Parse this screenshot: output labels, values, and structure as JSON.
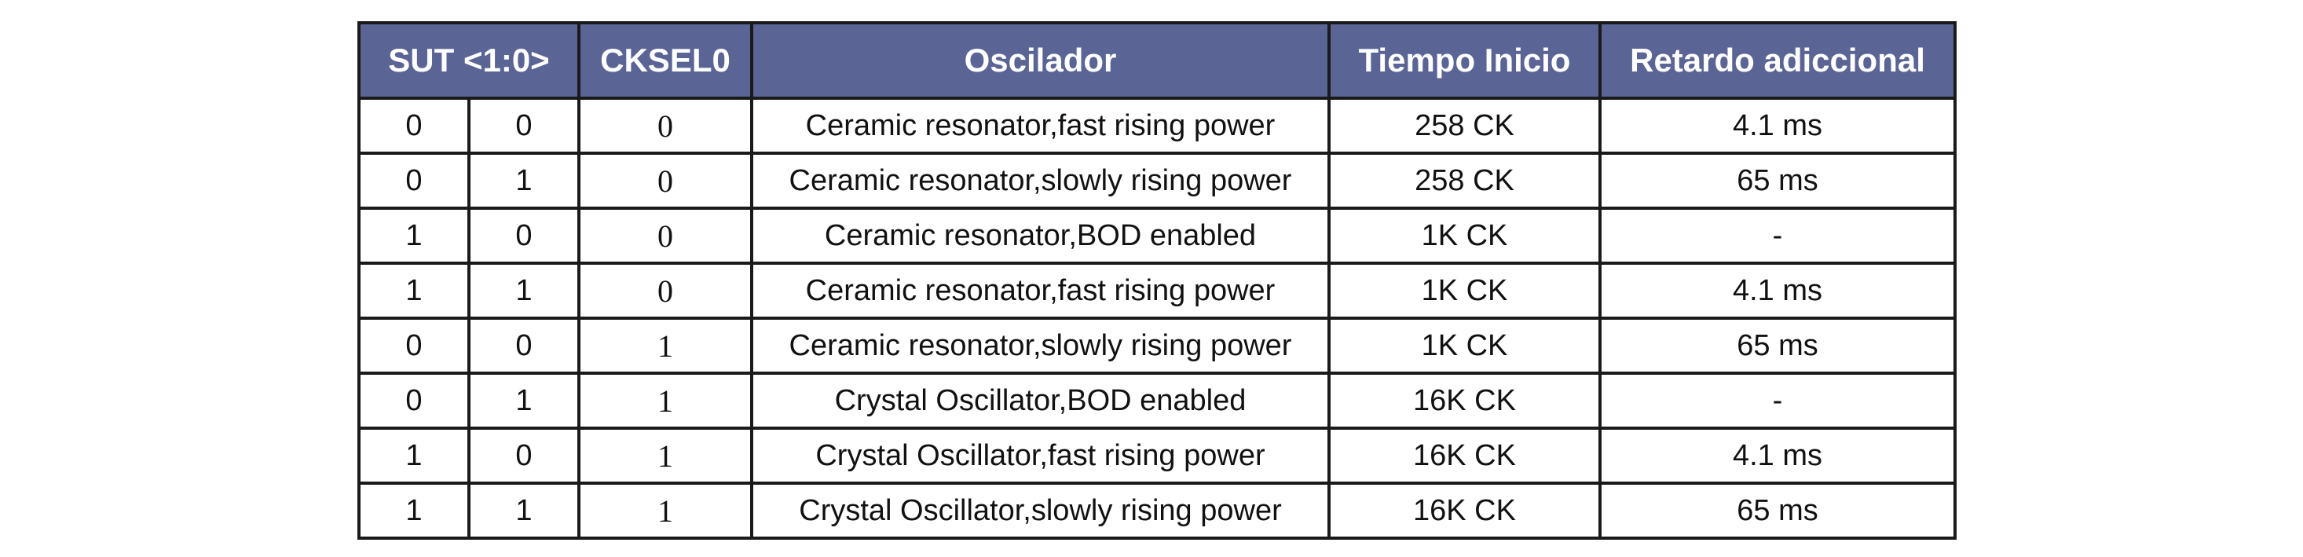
{
  "table": {
    "headers": {
      "sut": "SUT <1:0>",
      "cksel0": "CKSEL0",
      "oscilador": "Oscilador",
      "tiempo": "Tiempo Inicio",
      "retardo": "Retardo adiccional"
    },
    "rows": [
      {
        "sut1": "0",
        "sut0": "0",
        "cksel0": "0",
        "oscilador": "Ceramic resonator,fast rising power",
        "tiempo": "258 CK",
        "retardo": "4.1 ms"
      },
      {
        "sut1": "0",
        "sut0": "1",
        "cksel0": "0",
        "oscilador": "Ceramic resonator,slowly rising power",
        "tiempo": "258 CK",
        "retardo": "65 ms"
      },
      {
        "sut1": "1",
        "sut0": "0",
        "cksel0": "0",
        "oscilador": "Ceramic resonator,BOD enabled",
        "tiempo": "1K CK",
        "retardo": "-"
      },
      {
        "sut1": "1",
        "sut0": "1",
        "cksel0": "0",
        "oscilador": "Ceramic resonator,fast rising power",
        "tiempo": "1K CK",
        "retardo": "4.1 ms"
      },
      {
        "sut1": "0",
        "sut0": "0",
        "cksel0": "1",
        "oscilador": "Ceramic resonator,slowly rising power",
        "tiempo": "1K CK",
        "retardo": "65 ms"
      },
      {
        "sut1": "0",
        "sut0": "1",
        "cksel0": "1",
        "oscilador": "Crystal Oscillator,BOD enabled",
        "tiempo": "16K CK",
        "retardo": "-"
      },
      {
        "sut1": "1",
        "sut0": "0",
        "cksel0": "1",
        "oscilador": "Crystal Oscillator,fast rising power",
        "tiempo": "16K CK",
        "retardo": "4.1 ms"
      },
      {
        "sut1": "1",
        "sut0": "1",
        "cksel0": "1",
        "oscilador": "Crystal Oscillator,slowly rising power",
        "tiempo": "16K CK",
        "retardo": "65 ms"
      }
    ]
  },
  "colors": {
    "header_bg": "#5a6596",
    "header_text": "#ffffff",
    "border": "#1a1a1a"
  }
}
